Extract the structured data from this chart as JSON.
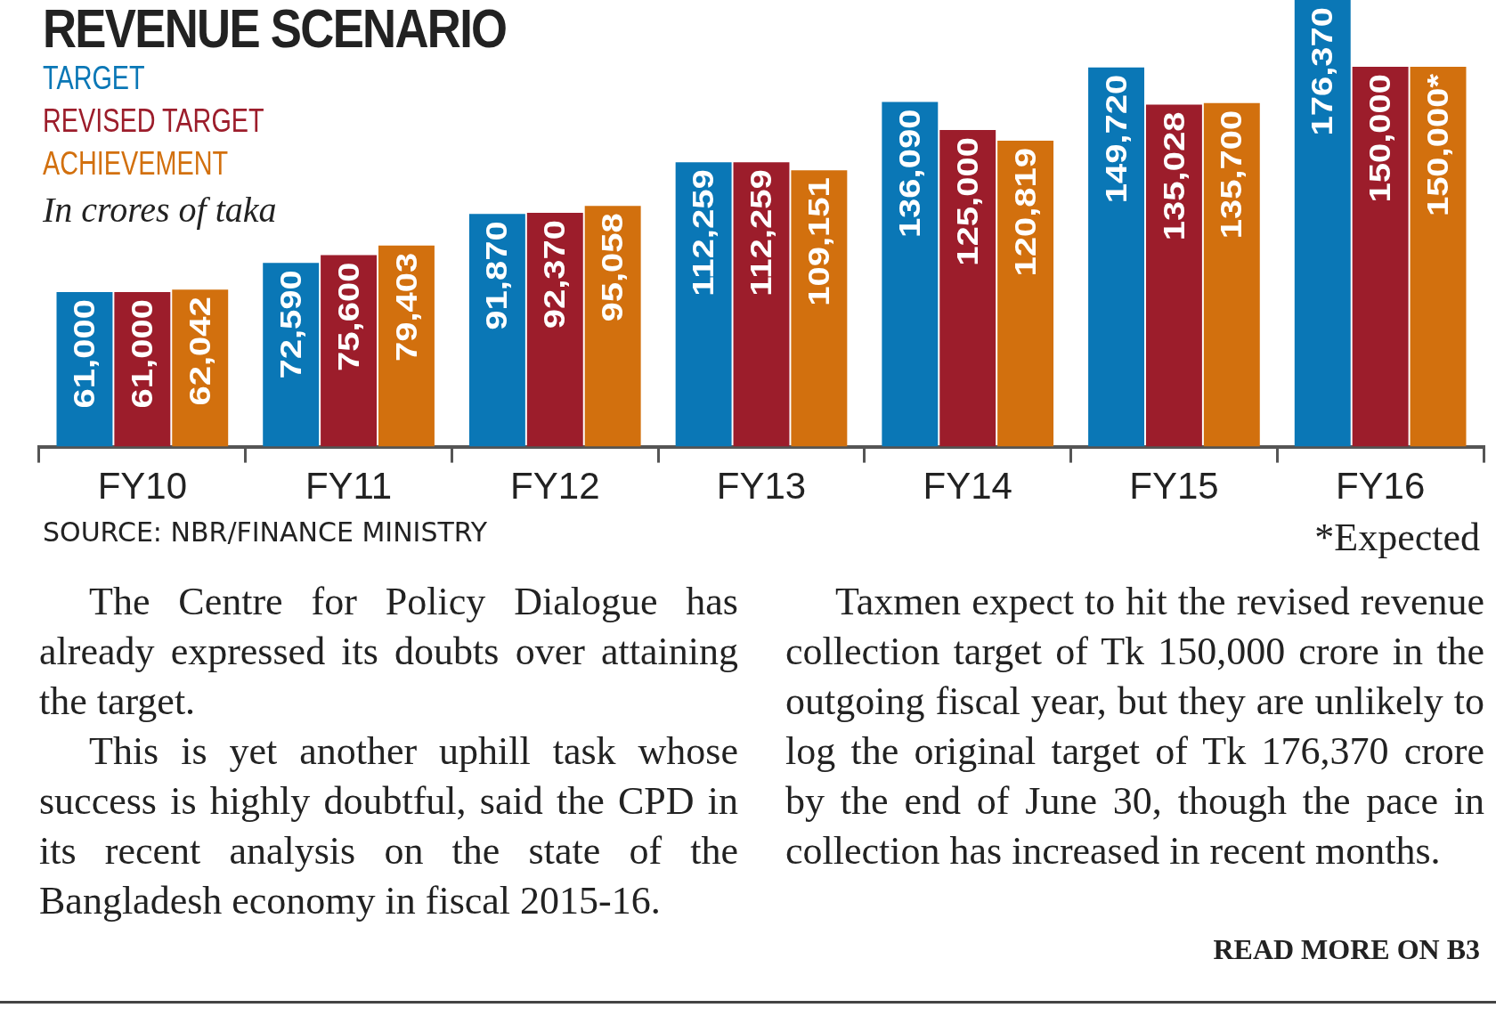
{
  "chart_data": {
    "type": "bar",
    "title": "REVENUE SCENARIO",
    "subtitle": "In crores of taka",
    "categories": [
      "FY10",
      "FY11",
      "FY12",
      "FY13",
      "FY14",
      "FY15",
      "FY16"
    ],
    "series": [
      {
        "name": "TARGET",
        "color": "#0a77b6",
        "values": [
          61000,
          72590,
          91870,
          112259,
          136090,
          149720,
          176370
        ],
        "value_labels": [
          "61,000",
          "72,590",
          "91,870",
          "112,259",
          "136,090",
          "149,720",
          "176,370"
        ]
      },
      {
        "name": "REVISED TARGET",
        "color": "#9c1d2b",
        "values": [
          61000,
          75600,
          92370,
          112259,
          125000,
          135028,
          150000
        ],
        "value_labels": [
          "61,000",
          "75,600",
          "92,370",
          "112,259",
          "125,000",
          "135,028",
          "150,000"
        ]
      },
      {
        "name": "ACHIEVEMENT",
        "color": "#d2700e",
        "values": [
          62042,
          79403,
          95058,
          109151,
          120819,
          135700,
          150000
        ],
        "value_labels": [
          "62,042",
          "79,403",
          "95,058",
          "109,151",
          "120,819",
          "135,700",
          "150,000*"
        ]
      }
    ],
    "legend": "top left",
    "grid": false,
    "annotations": [
      "SOURCE: NBR/FINANCE MINISTRY",
      "*Expected",
      "The Centre for Policy Dialogue has already expressed its doubts over attaining the target.",
      "This is yet another uphill task whose success is highly doubtful, said the CPD in its recent analysis on the state of the Bangladesh economy in fiscal 2015-16.",
      "Taxmen expect to hit the revised revenue collection target of Tk 150,000 crore in the outgoing fiscal year, but they are unlikely to log the original target of Tk 176,370 crore by the end of June 30, though the pace in collection has increased in recent months.",
      "READ MORE ON B3"
    ]
  }
}
